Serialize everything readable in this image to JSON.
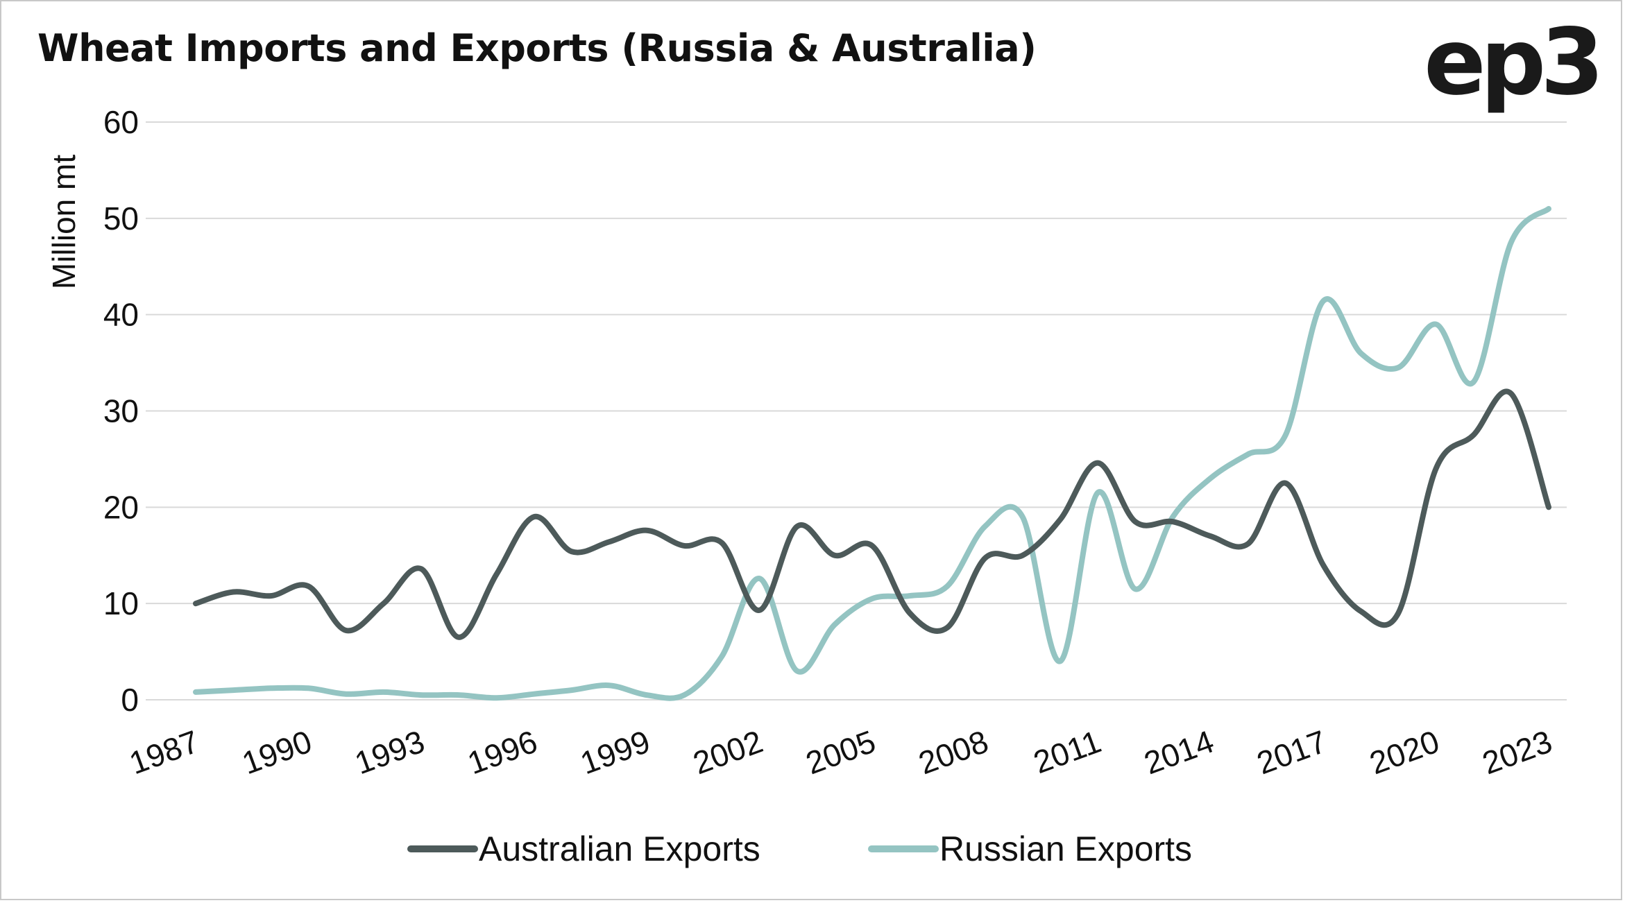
{
  "title": "Wheat Imports and Exports (Russia & Australia)",
  "logo_text": "ep3",
  "chart_data": {
    "type": "line",
    "title": "Wheat Imports and Exports (Russia & Australia)",
    "xlabel": "",
    "ylabel": "Million mt",
    "ylim": [
      0,
      60
    ],
    "yticks": [
      "0",
      "10",
      "20",
      "30",
      "40",
      "50",
      "60"
    ],
    "xtick_labels": [
      "1987",
      "1990",
      "1993",
      "1996",
      "1999",
      "2002",
      "2005",
      "2008",
      "2011",
      "2014",
      "2017",
      "2020",
      "2023"
    ],
    "x": [
      1987,
      1988,
      1989,
      1990,
      1991,
      1992,
      1993,
      1994,
      1995,
      1996,
      1997,
      1998,
      1999,
      2000,
      2001,
      2002,
      2003,
      2004,
      2005,
      2006,
      2007,
      2008,
      2009,
      2010,
      2011,
      2012,
      2013,
      2014,
      2015,
      2016,
      2017,
      2018,
      2019,
      2020,
      2021,
      2022,
      2023
    ],
    "grid": true,
    "legend_position": "bottom",
    "series": [
      {
        "name": "Australian Exports",
        "color": "#4d5a5a",
        "values": [
          10,
          11.2,
          10.8,
          11.8,
          7.2,
          10,
          13.6,
          6.5,
          13,
          19,
          15.4,
          16.4,
          17.6,
          16,
          16.3,
          9.3,
          18,
          15,
          16,
          9,
          7.5,
          14.7,
          15,
          18.7,
          24.6,
          18.5,
          18.5,
          17,
          16.2,
          22.5,
          14,
          9.2,
          9,
          24,
          27.5,
          31.8,
          20
        ]
      },
      {
        "name": "Russian Exports",
        "color": "#94c4c2",
        "values": [
          0.8,
          1,
          1.2,
          1.2,
          0.6,
          0.8,
          0.5,
          0.5,
          0.2,
          0.6,
          1,
          1.5,
          0.5,
          0.5,
          4.5,
          12.6,
          3,
          7.8,
          10.5,
          10.8,
          11.8,
          18,
          19,
          4,
          21.5,
          11.5,
          19,
          23,
          25.5,
          27.5,
          41.4,
          36,
          34.5,
          39,
          33,
          47.5,
          51
        ]
      }
    ]
  }
}
